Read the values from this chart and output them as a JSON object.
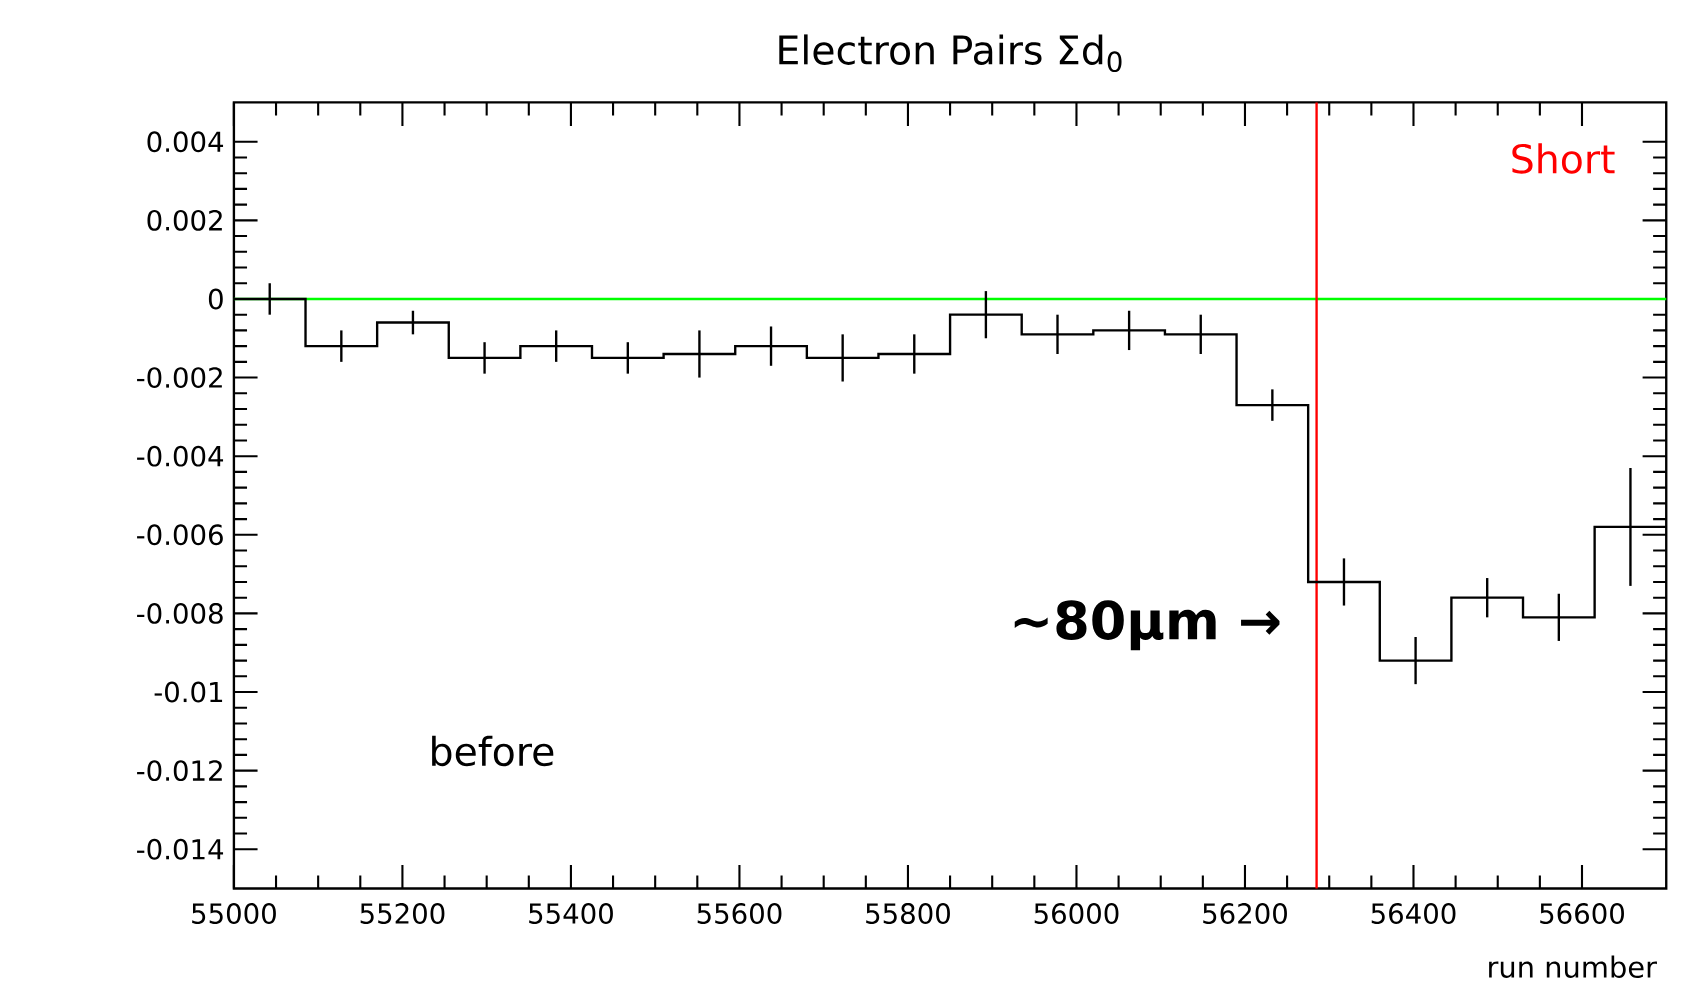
{
  "chart_data": {
    "type": "step",
    "title": "Electron Pairs Σd$_{0}$",
    "xlabel": "run number",
    "x": [
      55042.5,
      55127.5,
      55212.5,
      55297.5,
      55382.5,
      55467.5,
      55552.5,
      55637.5,
      55722.5,
      55807.5,
      55892.5,
      55977.5,
      56062.5,
      56147.5,
      56232.5,
      56317.5,
      56402.5,
      56487.5,
      56572.5,
      56657.5
    ],
    "values": [
      0.0,
      -0.0012,
      -0.0006,
      -0.0015,
      -0.0012,
      -0.0015,
      -0.0014,
      -0.0012,
      -0.0015,
      -0.0014,
      -0.0004,
      -0.0009,
      -0.0008,
      -0.0009,
      -0.0027,
      -0.0072,
      -0.0092,
      -0.0076,
      -0.0081,
      -0.0058
    ],
    "errors": [
      0.0004,
      0.0004,
      0.0003,
      0.0004,
      0.0004,
      0.0004,
      0.0006,
      0.0005,
      0.0006,
      0.0005,
      0.0006,
      0.0005,
      0.0005,
      0.0005,
      0.0004,
      0.0006,
      0.0006,
      0.0005,
      0.0006,
      0.0015
    ],
    "color": "#000000",
    "xlim": [
      55000,
      56700
    ],
    "xticks": [
      55000,
      55200,
      55400,
      55600,
      55800,
      56000,
      56200,
      56400,
      56600
    ],
    "ylim": [
      -0.015,
      0.005
    ],
    "yticks": [
      0.004,
      0.002,
      0,
      -0.002,
      -0.004,
      -0.006,
      -0.008,
      -0.01,
      -0.012,
      -0.014
    ],
    "ref_lines": [
      {
        "axis": "y",
        "value": 0,
        "color": "#00ff00"
      },
      {
        "axis": "x",
        "value": 56285,
        "color": "#ff0000",
        "label": "Short"
      }
    ],
    "annotations": [
      "before",
      "~80μm →"
    ],
    "grid": false
  }
}
